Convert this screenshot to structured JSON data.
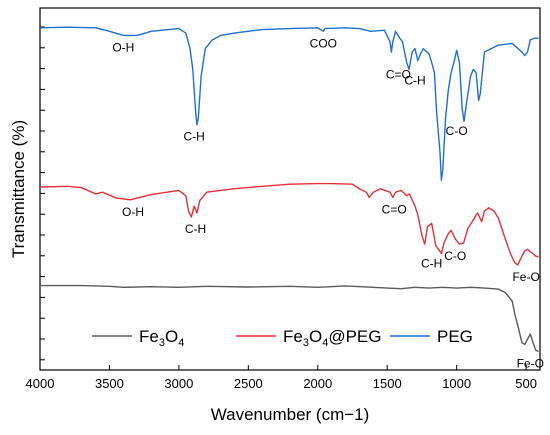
{
  "chart_data": {
    "type": "line",
    "xlabel": "Wavenumber (cm−1)",
    "ylabel": "Transmittance (%)",
    "xlim": [
      4000,
      400
    ],
    "x_ticks": [
      "4000",
      "3500",
      "3000",
      "2500",
      "2000",
      "1500",
      "1000",
      "500"
    ],
    "y_range": [
      0,
      100
    ],
    "grid": false,
    "legend_position": "bottom",
    "series": [
      {
        "name": "Fe3O4",
        "legend_parts": [
          {
            "text": "Fe",
            "sub": false
          },
          {
            "text": "3",
            "sub": true
          },
          {
            "text": "O",
            "sub": false
          },
          {
            "text": "4",
            "sub": true
          }
        ],
        "color": "#5a5a5a",
        "points": [
          [
            4000,
            21.5
          ],
          [
            3700,
            21.5
          ],
          [
            3500,
            21.3
          ],
          [
            3400,
            21.0
          ],
          [
            3200,
            21.2
          ],
          [
            3000,
            21.0
          ],
          [
            2800,
            21.3
          ],
          [
            2500,
            21.1
          ],
          [
            2200,
            21.3
          ],
          [
            2000,
            21.0
          ],
          [
            1800,
            21.4
          ],
          [
            1600,
            21.0
          ],
          [
            1500,
            20.8
          ],
          [
            1400,
            20.6
          ],
          [
            1300,
            21.0
          ],
          [
            1200,
            20.8
          ],
          [
            1100,
            21.0
          ],
          [
            1000,
            20.8
          ],
          [
            900,
            21.0
          ],
          [
            800,
            20.8
          ],
          [
            700,
            20.5
          ],
          [
            650,
            19.5
          ],
          [
            600,
            17.0
          ],
          [
            580,
            13.0
          ],
          [
            560,
            10.0
          ],
          [
            545,
            7.5
          ],
          [
            530,
            5.0
          ],
          [
            510,
            4.5
          ],
          [
            490,
            6.0
          ],
          [
            470,
            7.5
          ],
          [
            450,
            5.0
          ],
          [
            430,
            2.8
          ],
          [
            410,
            2.5
          ]
        ]
      },
      {
        "name": "Fe3O4@PEG",
        "legend_parts": [
          {
            "text": "Fe",
            "sub": false
          },
          {
            "text": "3",
            "sub": true
          },
          {
            "text": "O",
            "sub": false
          },
          {
            "text": "4",
            "sub": true
          },
          {
            "text": "@PEG",
            "sub": false
          }
        ],
        "color": "#e2323a",
        "points": [
          [
            4000,
            50.0
          ],
          [
            3800,
            50.2
          ],
          [
            3700,
            49.8
          ],
          [
            3600,
            48.0
          ],
          [
            3550,
            48.5
          ],
          [
            3450,
            46.8
          ],
          [
            3350,
            46.3
          ],
          [
            3200,
            47.8
          ],
          [
            3000,
            49.0
          ],
          [
            2950,
            47.5
          ],
          [
            2930,
            43.0
          ],
          [
            2910,
            41.3
          ],
          [
            2890,
            44.5
          ],
          [
            2870,
            42.5
          ],
          [
            2850,
            46.0
          ],
          [
            2800,
            48.5
          ],
          [
            2600,
            49.5
          ],
          [
            2400,
            50.2
          ],
          [
            2200,
            50.8
          ],
          [
            2000,
            51.0
          ],
          [
            1900,
            51.0
          ],
          [
            1750,
            50.8
          ],
          [
            1700,
            49.5
          ],
          [
            1650,
            48.5
          ],
          [
            1630,
            47.0
          ],
          [
            1600,
            48.5
          ],
          [
            1550,
            49.5
          ],
          [
            1480,
            48.5
          ],
          [
            1460,
            47.0
          ],
          [
            1440,
            48.5
          ],
          [
            1400,
            49.0
          ],
          [
            1360,
            47.5
          ],
          [
            1340,
            48.0
          ],
          [
            1300,
            44.5
          ],
          [
            1280,
            42.0
          ],
          [
            1250,
            36.0
          ],
          [
            1230,
            33.5
          ],
          [
            1210,
            38.5
          ],
          [
            1180,
            39.5
          ],
          [
            1150,
            33.0
          ],
          [
            1110,
            30.8
          ],
          [
            1090,
            34.0
          ],
          [
            1060,
            36.5
          ],
          [
            1040,
            37.5
          ],
          [
            1010,
            35.0
          ],
          [
            980,
            33.5
          ],
          [
            950,
            33.8
          ],
          [
            920,
            38.0
          ],
          [
            880,
            40.5
          ],
          [
            850,
            42.5
          ],
          [
            820,
            40.0
          ],
          [
            800,
            43.0
          ],
          [
            770,
            44.0
          ],
          [
            730,
            43.0
          ],
          [
            700,
            41.0
          ],
          [
            650,
            35.0
          ],
          [
            610,
            30.5
          ],
          [
            580,
            28.0
          ],
          [
            560,
            27.5
          ],
          [
            530,
            30.0
          ],
          [
            510,
            31.5
          ],
          [
            490,
            32.0
          ],
          [
            460,
            31.0
          ],
          [
            430,
            30.0
          ],
          [
            410,
            29.8
          ]
        ]
      },
      {
        "name": "PEG",
        "legend_parts": [
          {
            "text": "PEG",
            "sub": false
          }
        ],
        "color": "#1f6fd1",
        "points": [
          [
            4000,
            96.0
          ],
          [
            3800,
            96.2
          ],
          [
            3600,
            96.0
          ],
          [
            3500,
            95.0
          ],
          [
            3400,
            93.8
          ],
          [
            3300,
            93.8
          ],
          [
            3200,
            95.0
          ],
          [
            3000,
            95.8
          ],
          [
            2950,
            94.5
          ],
          [
            2920,
            90.0
          ],
          [
            2900,
            84.0
          ],
          [
            2880,
            72.0
          ],
          [
            2870,
            68.0
          ],
          [
            2860,
            70.0
          ],
          [
            2840,
            82.0
          ],
          [
            2810,
            90.0
          ],
          [
            2760,
            92.5
          ],
          [
            2700,
            93.8
          ],
          [
            2600,
            94.5
          ],
          [
            2400,
            95.5
          ],
          [
            2200,
            95.8
          ],
          [
            2000,
            96.0
          ],
          [
            1960,
            95.0
          ],
          [
            1950,
            95.8
          ],
          [
            1800,
            96.0
          ],
          [
            1700,
            95.8
          ],
          [
            1620,
            95.0
          ],
          [
            1520,
            95.3
          ],
          [
            1480,
            92.0
          ],
          [
            1470,
            89.0
          ],
          [
            1460,
            92.0
          ],
          [
            1440,
            95.0
          ],
          [
            1410,
            93.0
          ],
          [
            1390,
            92.0
          ],
          [
            1360,
            86.0
          ],
          [
            1343,
            84.0
          ],
          [
            1320,
            89.0
          ],
          [
            1300,
            90.0
          ],
          [
            1280,
            86.5
          ],
          [
            1260,
            88.5
          ],
          [
            1240,
            90.0
          ],
          [
            1200,
            88.5
          ],
          [
            1180,
            86.0
          ],
          [
            1160,
            83.0
          ],
          [
            1145,
            72.0
          ],
          [
            1120,
            60.0
          ],
          [
            1110,
            52.0
          ],
          [
            1100,
            55.0
          ],
          [
            1080,
            70.0
          ],
          [
            1060,
            78.0
          ],
          [
            1040,
            83.0
          ],
          [
            1020,
            86.0
          ],
          [
            1000,
            89.5
          ],
          [
            980,
            86.0
          ],
          [
            960,
            72.5
          ],
          [
            947,
            69.0
          ],
          [
            930,
            74.0
          ],
          [
            900,
            82.0
          ],
          [
            880,
            84.0
          ],
          [
            860,
            83.0
          ],
          [
            842,
            75.0
          ],
          [
            830,
            77.0
          ],
          [
            800,
            89.0
          ],
          [
            700,
            91.0
          ],
          [
            600,
            91.5
          ],
          [
            530,
            89.0
          ],
          [
            510,
            88.0
          ],
          [
            490,
            89.0
          ],
          [
            470,
            92.5
          ],
          [
            440,
            93.0
          ],
          [
            410,
            93.0
          ]
        ]
      }
    ],
    "annotations": [
      {
        "text": "O-H",
        "series": "PEG",
        "wn": 3400
      },
      {
        "text": "COO",
        "series": "PEG",
        "wn": 1960
      },
      {
        "text": "C-H",
        "series": "PEG",
        "wn": 2890
      },
      {
        "text": "C=O",
        "series": "PEG",
        "wn": 1420
      },
      {
        "text": "C-H",
        "series": "PEG",
        "wn": 1300
      },
      {
        "text": "C-O",
        "series": "PEG",
        "wn": 1000
      },
      {
        "text": "O-H",
        "series": "Fe3O4@PEG",
        "wn": 3330
      },
      {
        "text": "C-H",
        "series": "Fe3O4@PEG",
        "wn": 2880
      },
      {
        "text": "C=O",
        "series": "Fe3O4@PEG",
        "wn": 1450
      },
      {
        "text": "C-H",
        "series": "Fe3O4@PEG",
        "wn": 1180
      },
      {
        "text": "C-O",
        "series": "Fe3O4@PEG",
        "wn": 1010
      },
      {
        "text": "Fe-O",
        "series": "Fe3O4@PEG",
        "wn": 500
      },
      {
        "text": "Fe-O",
        "series": "Fe3O4",
        "wn": 470
      }
    ]
  }
}
